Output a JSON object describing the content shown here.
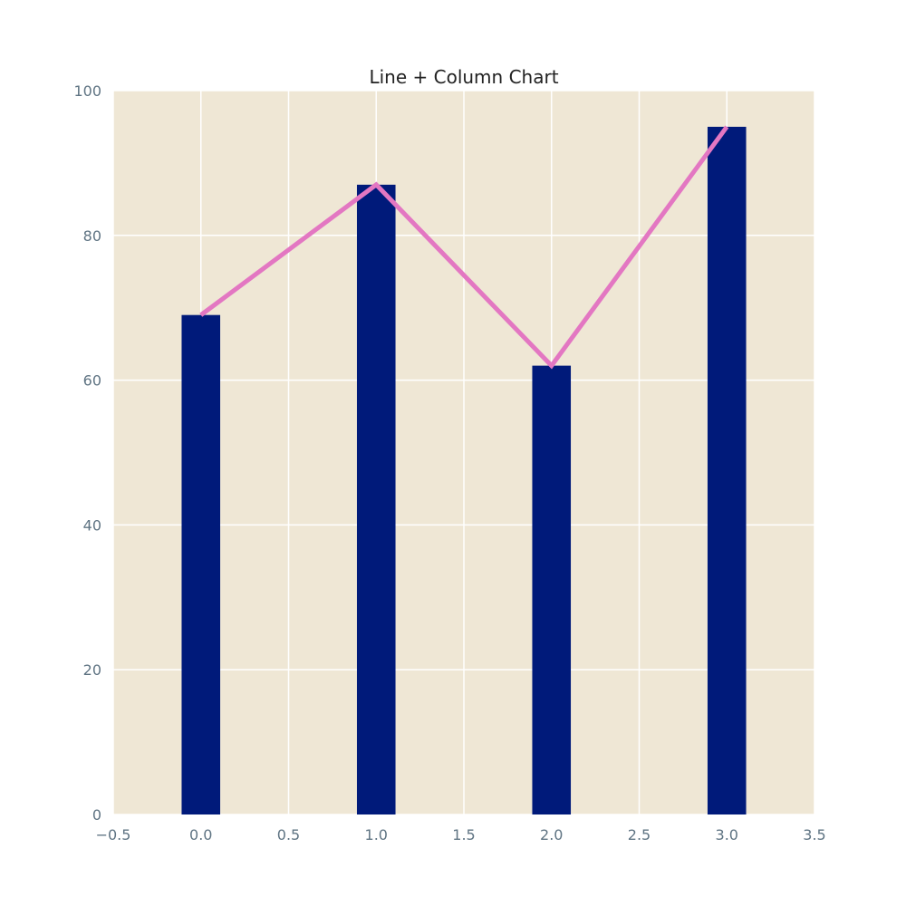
{
  "chart_data": {
    "type": "bar",
    "title": "Line + Column Chart",
    "xlabel": "",
    "ylabel": "",
    "x": [
      0,
      1,
      2,
      3
    ],
    "xlim": [
      -0.5,
      3.5
    ],
    "ylim": [
      0,
      100
    ],
    "x_ticks": [
      -0.5,
      0.0,
      0.5,
      1.0,
      1.5,
      2.0,
      2.5,
      3.0,
      3.5
    ],
    "x_tick_labels": [
      "−0.5",
      "0.0",
      "0.5",
      "1.0",
      "1.5",
      "2.0",
      "2.5",
      "3.0",
      "3.5"
    ],
    "y_ticks": [
      0,
      20,
      40,
      60,
      80,
      100
    ],
    "y_tick_labels": [
      "0",
      "20",
      "40",
      "60",
      "80",
      "100"
    ],
    "grid": true,
    "legend": false,
    "bar_width": 0.22,
    "series": [
      {
        "type": "bar",
        "values": [
          69,
          87,
          62,
          95
        ],
        "color": "#001a7a"
      },
      {
        "type": "line",
        "values": [
          69,
          87,
          62,
          95
        ],
        "color": "#e377c2"
      }
    ],
    "colors": {
      "plot_background": "#efe7d5",
      "grid": "#ffffff",
      "tick_text": "#5f7483",
      "title_text": "#222222"
    }
  }
}
